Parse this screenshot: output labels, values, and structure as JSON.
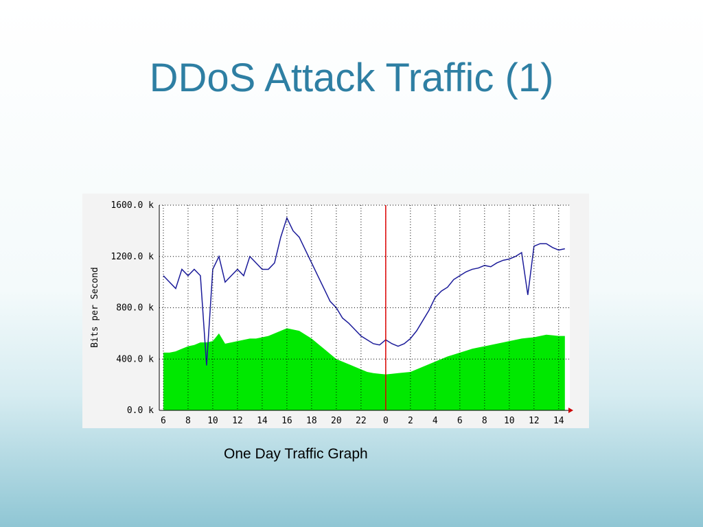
{
  "title": "DDoS Attack Traffic (1)",
  "caption": "One Day Traffic Graph",
  "chart_data": {
    "type": "traffic",
    "ylabel": "Bits per Second",
    "x": [
      6,
      6.5,
      7,
      7.5,
      8,
      8.5,
      9,
      9.5,
      10,
      10.5,
      11,
      11.5,
      12,
      12.5,
      13,
      13.5,
      14,
      14.5,
      15,
      15.5,
      16,
      16.5,
      17,
      17.5,
      18,
      18.5,
      19,
      19.5,
      20,
      20.5,
      21,
      21.5,
      22,
      22.5,
      23,
      23.5,
      24,
      24.5,
      25,
      25.5,
      26,
      26.5,
      27,
      27.5,
      28,
      28.5,
      29,
      29.5,
      30,
      30.5,
      31,
      31.5,
      32,
      32.5,
      33,
      33.5,
      34,
      34.5,
      35,
      35.5,
      36,
      36.5,
      37,
      37.5,
      38,
      38.5
    ],
    "series": [
      {
        "kind": "area",
        "color": "#00e800",
        "values": [
          450,
          450,
          460,
          480,
          500,
          510,
          530,
          530,
          540,
          600,
          520,
          530,
          540,
          550,
          560,
          560,
          570,
          580,
          600,
          620,
          640,
          630,
          620,
          590,
          560,
          520,
          480,
          440,
          400,
          380,
          360,
          340,
          320,
          300,
          290,
          285,
          280,
          285,
          290,
          295,
          300,
          320,
          340,
          360,
          380,
          400,
          420,
          435,
          450,
          465,
          480,
          490,
          500,
          510,
          520,
          530,
          540,
          550,
          560,
          565,
          570,
          580,
          590,
          585,
          580,
          580
        ]
      },
      {
        "kind": "line",
        "color": "#1a1a99",
        "values": [
          1050,
          1000,
          950,
          1100,
          1050,
          1100,
          1050,
          350,
          1100,
          1200,
          1000,
          1050,
          1100,
          1050,
          1200,
          1150,
          1100,
          1100,
          1150,
          1350,
          1500,
          1400,
          1350,
          1250,
          1150,
          1050,
          950,
          850,
          800,
          720,
          680,
          630,
          580,
          550,
          520,
          510,
          550,
          520,
          500,
          520,
          560,
          620,
          700,
          780,
          880,
          930,
          960,
          1020,
          1050,
          1080,
          1100,
          1110,
          1130,
          1120,
          1150,
          1170,
          1180,
          1200,
          1230,
          900,
          1280,
          1300,
          1300,
          1270,
          1250,
          1260
        ]
      }
    ],
    "xlim": [
      5.67,
      38.9
    ],
    "xticks": [
      6,
      8,
      10,
      12,
      14,
      16,
      18,
      20,
      22,
      {
        "value": 24,
        "label": "0"
      },
      {
        "value": 26,
        "label": "2"
      },
      {
        "value": 28,
        "label": "4"
      },
      {
        "value": 30,
        "label": "6"
      },
      {
        "value": 32,
        "label": "8"
      },
      {
        "value": 34,
        "label": "10"
      },
      {
        "value": 36,
        "label": "12"
      },
      {
        "value": 38,
        "label": "14"
      }
    ],
    "ylim": [
      0,
      1600
    ],
    "yticks": [
      {
        "value": 0,
        "label": "0.0 k"
      },
      {
        "value": 400,
        "label": "400.0 k"
      },
      {
        "value": 800,
        "label": "800.0 k"
      },
      {
        "value": 1200,
        "label": "1200.0 k"
      },
      {
        "value": 1600,
        "label": "1600.0 k"
      }
    ],
    "now_marker": 24,
    "grid": true
  }
}
